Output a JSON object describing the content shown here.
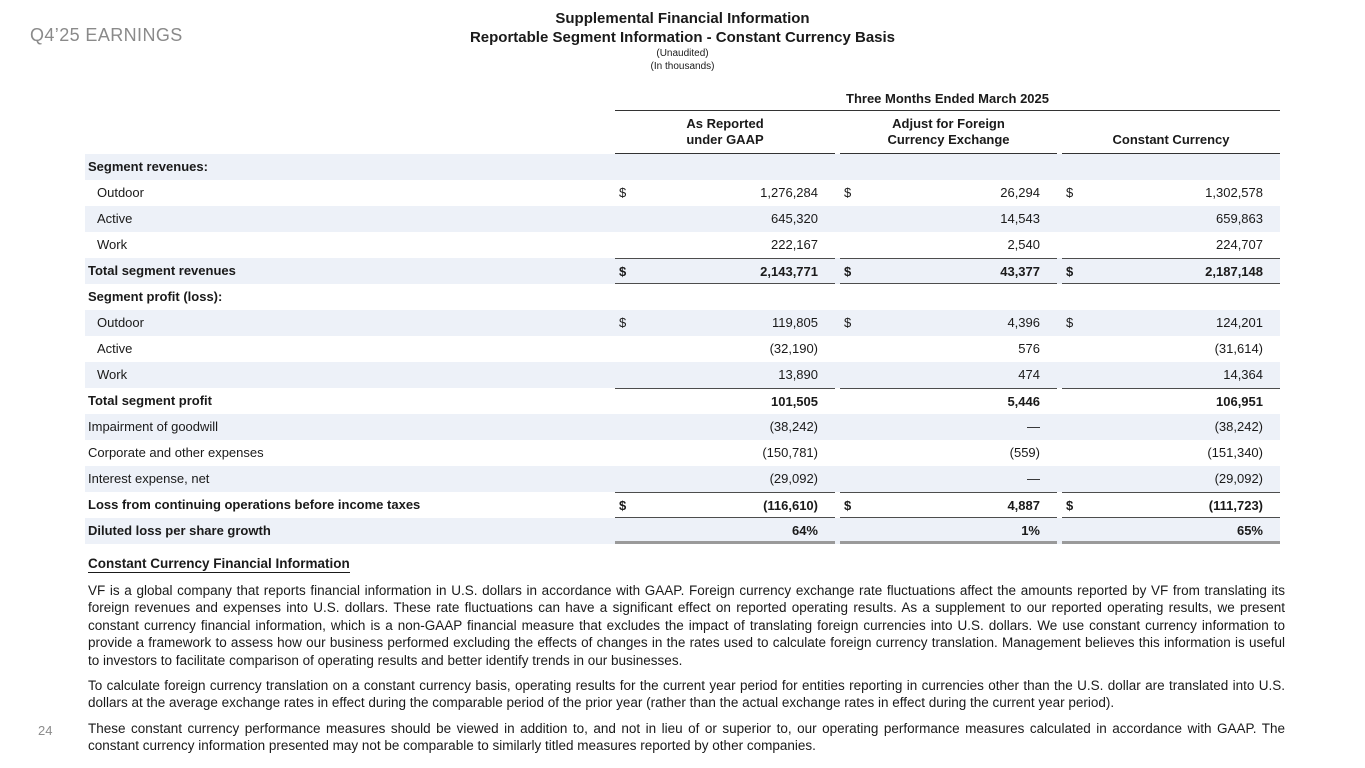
{
  "page": {
    "corner_label": "Q4’25 EARNINGS",
    "page_number": "24"
  },
  "header": {
    "title_line1": "Supplemental Financial Information",
    "title_line2": "Reportable Segment Information - Constant Currency Basis",
    "subtitle1": "(Unaudited)",
    "subtitle2": "(In thousands)"
  },
  "table": {
    "period_header": "Three Months Ended March 2025",
    "columns": [
      {
        "line1": "As Reported",
        "line2": "under GAAP"
      },
      {
        "line1": "Adjust for Foreign",
        "line2": "Currency Exchange"
      },
      {
        "line1": "",
        "line2": "Constant Currency"
      }
    ],
    "rows": [
      {
        "label": "Segment revenues:",
        "bold": true,
        "indent": false,
        "cells": [
          null,
          null,
          null
        ]
      },
      {
        "label": "Outdoor",
        "bold": false,
        "indent": true,
        "cells": [
          {
            "d": "$",
            "v": "1,276,284"
          },
          {
            "d": "$",
            "v": "26,294"
          },
          {
            "d": "$",
            "v": "1,302,578"
          }
        ]
      },
      {
        "label": "Active",
        "bold": false,
        "indent": true,
        "cells": [
          {
            "v": "645,320"
          },
          {
            "v": "14,543"
          },
          {
            "v": "659,863"
          }
        ]
      },
      {
        "label": "Work",
        "bold": false,
        "indent": true,
        "cells": [
          {
            "v": "222,167"
          },
          {
            "v": "2,540"
          },
          {
            "v": "224,707"
          }
        ]
      },
      {
        "label": "Total segment revenues",
        "bold": true,
        "indent": false,
        "line_top": true,
        "line_bottom": true,
        "cells": [
          {
            "d": "$",
            "v": "2,143,771"
          },
          {
            "d": "$",
            "v": "43,377"
          },
          {
            "d": "$",
            "v": "2,187,148"
          }
        ]
      },
      {
        "label": "Segment profit (loss):",
        "bold": true,
        "indent": false,
        "cells": [
          null,
          null,
          null
        ]
      },
      {
        "label": "Outdoor",
        "bold": false,
        "indent": true,
        "cells": [
          {
            "d": "$",
            "v": "119,805"
          },
          {
            "d": "$",
            "v": "4,396"
          },
          {
            "d": "$",
            "v": "124,201"
          }
        ]
      },
      {
        "label": "Active",
        "bold": false,
        "indent": true,
        "cells": [
          {
            "v": "(32,190)"
          },
          {
            "v": "576"
          },
          {
            "v": "(31,614)"
          }
        ]
      },
      {
        "label": "Work",
        "bold": false,
        "indent": true,
        "cells": [
          {
            "v": "13,890"
          },
          {
            "v": "474"
          },
          {
            "v": "14,364"
          }
        ]
      },
      {
        "label": "Total segment profit",
        "bold": true,
        "indent": false,
        "line_top": true,
        "cells": [
          {
            "v": "101,505"
          },
          {
            "v": "5,446"
          },
          {
            "v": "106,951"
          }
        ]
      },
      {
        "label": "Impairment of goodwill",
        "bold": false,
        "indent": false,
        "cells": [
          {
            "v": "(38,242)"
          },
          {
            "v": "—"
          },
          {
            "v": "(38,242)"
          }
        ]
      },
      {
        "label": "Corporate and other expenses",
        "bold": false,
        "indent": false,
        "cells": [
          {
            "v": "(150,781)"
          },
          {
            "v": "(559)"
          },
          {
            "v": "(151,340)"
          }
        ]
      },
      {
        "label": "Interest expense, net",
        "bold": false,
        "indent": false,
        "cells": [
          {
            "v": "(29,092)"
          },
          {
            "v": "—"
          },
          {
            "v": "(29,092)"
          }
        ]
      },
      {
        "label": "Loss from continuing operations before income taxes",
        "bold": true,
        "indent": false,
        "line_top": true,
        "line_bottom": true,
        "cells": [
          {
            "d": "$",
            "v": "(116,610)"
          },
          {
            "d": "$",
            "v": "4,887"
          },
          {
            "d": "$",
            "v": "(111,723)"
          }
        ]
      },
      {
        "label": "Diluted loss per share growth",
        "bold": true,
        "indent": false,
        "line_bottom_thick": true,
        "cells": [
          {
            "v": "64%"
          },
          {
            "v": "1%"
          },
          {
            "v": "65%"
          }
        ]
      }
    ]
  },
  "notes": {
    "heading": "Constant Currency Financial Information",
    "paragraphs": [
      "VF is a global company that reports financial information in U.S. dollars in accordance with GAAP. Foreign currency exchange rate fluctuations affect the amounts reported by VF from translating its foreign revenues and expenses into U.S. dollars. These rate fluctuations can have a significant effect on reported operating results. As a supplement to our reported operating results, we present constant currency financial information, which is a non-GAAP financial measure that excludes the impact of translating foreign currencies into U.S. dollars. We use constant currency information to provide a framework to assess how our business performed excluding the effects of changes in the rates used to calculate foreign currency translation. Management believes this information is useful to investors to facilitate comparison of operating results and better identify trends in our businesses.",
      "To calculate foreign currency translation on a constant currency basis, operating results for the current year period for entities reporting in currencies other than the U.S. dollar are translated into U.S. dollars at the average exchange rates in effect during the comparable period of the prior year (rather than the actual exchange rates in effect during the current year period).",
      "These constant currency performance measures should be viewed in addition to, and not in lieu of or superior to, our operating performance measures calculated in accordance with GAAP. The constant currency information presented may not be comparable to similarly titled measures reported by other companies."
    ]
  },
  "colors": {
    "row_shade": "#edf1f8",
    "corner_label": "#8a8a8a",
    "text": "#1a1a1a",
    "rule_dark": "#333333",
    "rule_total": "#4d4d4d",
    "rule_bottom_thick": "#9a9a9a"
  }
}
